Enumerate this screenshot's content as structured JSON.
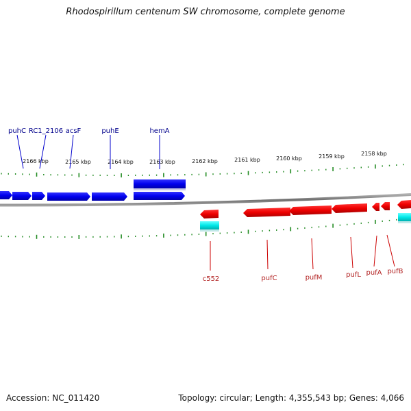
{
  "title": "Rhodospirillum centenum SW chromosome, complete genome",
  "footer": {
    "accession": "Accession: NC_011420",
    "summary": "Topology: circular; Length: 4,355,543 bp; Genes: 4,066"
  },
  "colors": {
    "forward_gene": "#0000ee",
    "reverse_gene": "#ee0000",
    "rna_gene": "#00e0e0",
    "ruler_tick": "#228b22",
    "backbone": "#808080",
    "forward_label": "#00008b",
    "reverse_label": "#b22222"
  },
  "scale_labels": [
    "2166 kbp",
    "2165 kbp",
    "2164 kbp",
    "2163 kbp",
    "2162 kbp",
    "2161 kbp",
    "2160 kbp",
    "2159 kbp",
    "2158 kbp"
  ],
  "forward_gene_labels": [
    "puhC",
    "RC1_2106",
    "acsF",
    "puhE",
    "hemA"
  ],
  "reverse_gene_labels": [
    "c552",
    "pufC",
    "pufM",
    "pufL",
    "pufA",
    "pufB"
  ]
}
